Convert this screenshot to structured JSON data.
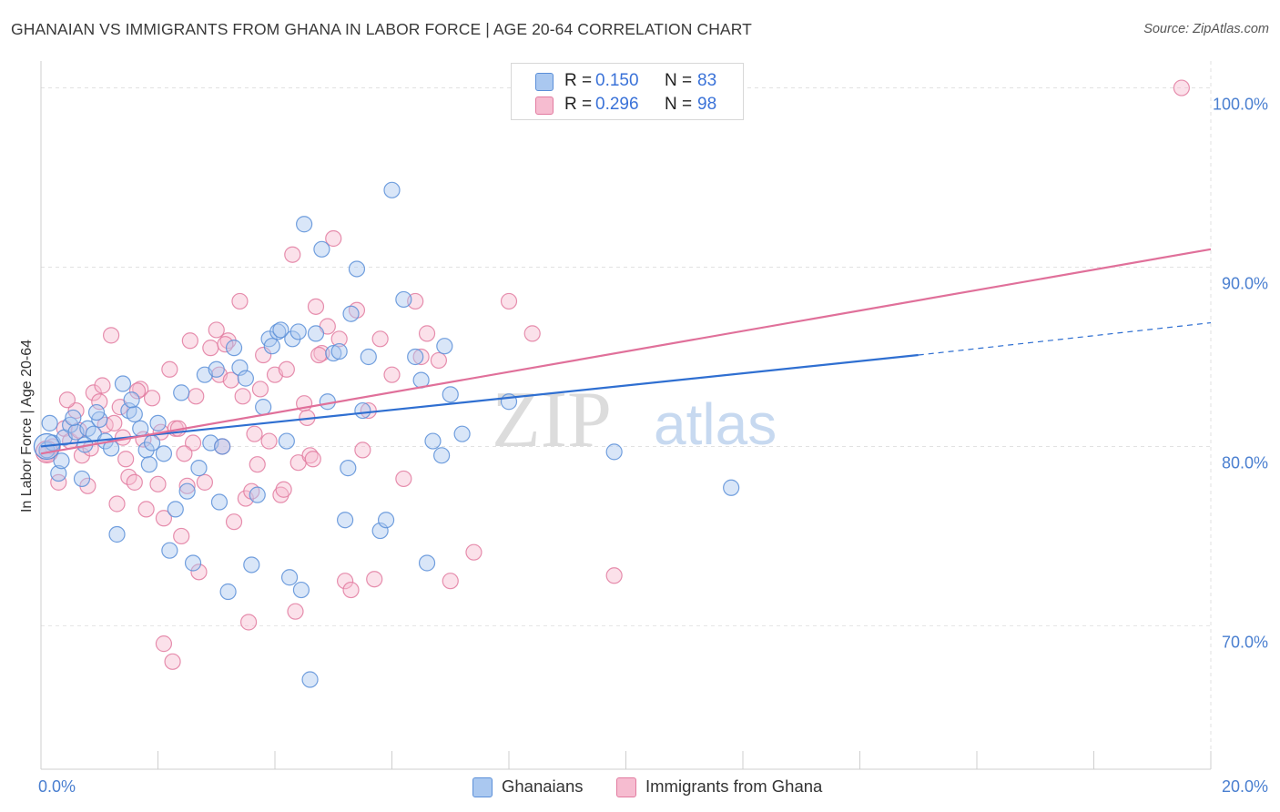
{
  "header": {
    "title": "GHANAIAN VS IMMIGRANTS FROM GHANA IN LABOR FORCE | AGE 20-64 CORRELATION CHART",
    "source": "Source: ZipAtlas.com"
  },
  "watermark": {
    "zip": "ZIP",
    "atlas": "atlas"
  },
  "legend": {
    "rows": [
      {
        "r_label": "R =",
        "r_value": "0.150",
        "n_label": "N =",
        "n_value": "83"
      },
      {
        "r_label": "R =",
        "r_value": "0.296",
        "n_label": "N =",
        "n_value": "98"
      }
    ]
  },
  "bottom_legend": {
    "items": [
      {
        "label": "Ghanaians"
      },
      {
        "label": "Immigrants from Ghana"
      }
    ]
  },
  "colors": {
    "blue_fill": "#aac8f0",
    "blue_stroke": "#5b8fd8",
    "blue_line": "#2f6fd1",
    "pink_fill": "#f6bcd0",
    "pink_stroke": "#e27ba0",
    "pink_line": "#e0709a",
    "tick_text": "#4a7fd0",
    "grid": "#e2e2e2"
  },
  "chart_data": {
    "type": "scatter",
    "title": "GHANAIAN VS IMMIGRANTS FROM GHANA IN LABOR FORCE | AGE 20-64 CORRELATION CHART",
    "xlabel": "",
    "ylabel": "In Labor Force | Age 20-64",
    "xlim": [
      0,
      20
    ],
    "ylim": [
      62,
      101.5
    ],
    "x_ticks": [
      "0.0%",
      "20.0%"
    ],
    "y_ticks": [
      {
        "value": 70,
        "label": "70.0%"
      },
      {
        "value": 80,
        "label": "80.0%"
      },
      {
        "value": 90,
        "label": "90.0%"
      },
      {
        "value": 100,
        "label": "100.0%"
      }
    ],
    "grid": "horizontal dashed",
    "legend_position": "top-center",
    "series": [
      {
        "name": "Ghanaians",
        "color": "#5b8fd8",
        "trend": {
          "x": [
            0,
            15.0
          ],
          "y": [
            80.0,
            85.1
          ],
          "dashed_to": [
            20.0,
            86.9
          ]
        },
        "points": [
          [
            0.1,
            79.8
          ],
          [
            0.2,
            80.2
          ],
          [
            0.3,
            78.5
          ],
          [
            0.4,
            80.5
          ],
          [
            0.5,
            81.2
          ],
          [
            0.6,
            80.8
          ],
          [
            0.7,
            78.2
          ],
          [
            0.8,
            81.0
          ],
          [
            0.9,
            80.7
          ],
          [
            1.0,
            81.5
          ],
          [
            1.1,
            80.3
          ],
          [
            1.2,
            79.9
          ],
          [
            1.3,
            75.1
          ],
          [
            1.4,
            83.5
          ],
          [
            1.5,
            82.0
          ],
          [
            1.6,
            81.8
          ],
          [
            1.7,
            81.0
          ],
          [
            1.8,
            79.8
          ],
          [
            1.9,
            80.2
          ],
          [
            2.0,
            81.3
          ],
          [
            2.1,
            79.6
          ],
          [
            2.2,
            74.2
          ],
          [
            2.3,
            76.5
          ],
          [
            2.4,
            83.0
          ],
          [
            2.5,
            77.5
          ],
          [
            2.6,
            73.5
          ],
          [
            2.7,
            78.8
          ],
          [
            2.8,
            84.0
          ],
          [
            2.9,
            80.2
          ],
          [
            3.0,
            84.3
          ],
          [
            3.05,
            76.9
          ],
          [
            3.1,
            80.0
          ],
          [
            3.2,
            71.9
          ],
          [
            3.3,
            85.5
          ],
          [
            3.4,
            84.4
          ],
          [
            3.5,
            83.8
          ],
          [
            3.6,
            73.4
          ],
          [
            3.7,
            77.3
          ],
          [
            3.8,
            82.2
          ],
          [
            3.9,
            86.0
          ],
          [
            3.95,
            85.6
          ],
          [
            4.05,
            86.4
          ],
          [
            4.1,
            86.5
          ],
          [
            4.2,
            80.3
          ],
          [
            4.25,
            72.7
          ],
          [
            4.3,
            86.0
          ],
          [
            4.4,
            86.4
          ],
          [
            4.45,
            72.0
          ],
          [
            4.5,
            92.4
          ],
          [
            4.6,
            67.0
          ],
          [
            4.7,
            86.3
          ],
          [
            4.8,
            91.0
          ],
          [
            4.9,
            82.5
          ],
          [
            5.0,
            85.2
          ],
          [
            5.1,
            85.3
          ],
          [
            5.2,
            75.9
          ],
          [
            5.25,
            78.8
          ],
          [
            5.3,
            87.4
          ],
          [
            5.4,
            89.9
          ],
          [
            5.5,
            82.0
          ],
          [
            5.6,
            85.0
          ],
          [
            5.8,
            75.3
          ],
          [
            5.9,
            75.9
          ],
          [
            6.0,
            94.3
          ],
          [
            6.2,
            88.2
          ],
          [
            6.4,
            85.0
          ],
          [
            6.5,
            83.7
          ],
          [
            6.6,
            73.5
          ],
          [
            6.7,
            80.3
          ],
          [
            6.85,
            79.5
          ],
          [
            6.9,
            85.6
          ],
          [
            7.0,
            82.9
          ],
          [
            7.2,
            80.7
          ],
          [
            8.0,
            82.5
          ],
          [
            9.8,
            79.7
          ],
          [
            11.8,
            77.7
          ],
          [
            0.15,
            81.3
          ],
          [
            0.35,
            79.2
          ],
          [
            0.55,
            81.6
          ],
          [
            0.75,
            80.1
          ],
          [
            0.95,
            81.9
          ],
          [
            1.55,
            82.6
          ],
          [
            1.85,
            79.0
          ]
        ]
      },
      {
        "name": "Immigrants from Ghana",
        "color": "#e27ba0",
        "trend": {
          "x": [
            0,
            20.0
          ],
          "y": [
            79.6,
            91.0
          ]
        },
        "points": [
          [
            0.1,
            79.6
          ],
          [
            0.2,
            80.0
          ],
          [
            0.3,
            78.0
          ],
          [
            0.4,
            81.0
          ],
          [
            0.5,
            80.3
          ],
          [
            0.6,
            82.0
          ],
          [
            0.7,
            79.5
          ],
          [
            0.8,
            77.8
          ],
          [
            0.9,
            83.0
          ],
          [
            1.0,
            82.5
          ],
          [
            1.1,
            81.2
          ],
          [
            1.2,
            86.2
          ],
          [
            1.3,
            76.8
          ],
          [
            1.4,
            80.5
          ],
          [
            1.5,
            78.3
          ],
          [
            1.6,
            78.0
          ],
          [
            1.7,
            83.2
          ],
          [
            1.8,
            76.5
          ],
          [
            1.9,
            82.7
          ],
          [
            2.0,
            77.9
          ],
          [
            2.05,
            80.8
          ],
          [
            2.1,
            76.0
          ],
          [
            2.2,
            84.3
          ],
          [
            2.3,
            81.0
          ],
          [
            2.4,
            75.0
          ],
          [
            2.5,
            77.8
          ],
          [
            2.6,
            80.2
          ],
          [
            2.7,
            73.0
          ],
          [
            2.8,
            78.0
          ],
          [
            2.9,
            85.5
          ],
          [
            3.0,
            86.5
          ],
          [
            3.1,
            80.0
          ],
          [
            3.2,
            85.9
          ],
          [
            3.3,
            75.8
          ],
          [
            3.4,
            88.1
          ],
          [
            3.5,
            77.1
          ],
          [
            3.6,
            77.5
          ],
          [
            3.7,
            79.0
          ],
          [
            3.8,
            85.1
          ],
          [
            3.9,
            80.3
          ],
          [
            4.0,
            84.0
          ],
          [
            4.1,
            77.3
          ],
          [
            4.2,
            84.3
          ],
          [
            4.3,
            90.7
          ],
          [
            4.4,
            79.1
          ],
          [
            4.5,
            82.4
          ],
          [
            4.6,
            79.5
          ],
          [
            4.7,
            87.8
          ],
          [
            4.8,
            85.2
          ],
          [
            4.9,
            86.7
          ],
          [
            5.0,
            91.6
          ],
          [
            5.1,
            86.0
          ],
          [
            5.2,
            72.5
          ],
          [
            5.3,
            72.0
          ],
          [
            5.4,
            87.6
          ],
          [
            5.5,
            79.8
          ],
          [
            5.6,
            82.0
          ],
          [
            5.7,
            72.6
          ],
          [
            5.8,
            86.0
          ],
          [
            6.0,
            84.0
          ],
          [
            6.2,
            78.2
          ],
          [
            6.4,
            88.1
          ],
          [
            6.5,
            85.0
          ],
          [
            6.6,
            86.3
          ],
          [
            6.8,
            84.8
          ],
          [
            7.0,
            72.5
          ],
          [
            7.4,
            74.1
          ],
          [
            8.0,
            88.1
          ],
          [
            8.4,
            86.3
          ],
          [
            9.8,
            72.8
          ],
          [
            19.5,
            100.0
          ],
          [
            2.1,
            69.0
          ],
          [
            2.25,
            68.0
          ],
          [
            3.55,
            70.2
          ],
          [
            4.35,
            70.8
          ],
          [
            1.25,
            81.3
          ],
          [
            0.45,
            82.6
          ],
          [
            0.65,
            80.9
          ],
          [
            0.85,
            79.9
          ],
          [
            1.05,
            83.4
          ],
          [
            1.35,
            82.2
          ],
          [
            1.45,
            79.3
          ],
          [
            1.65,
            83.1
          ],
          [
            1.75,
            80.4
          ],
          [
            2.35,
            81.0
          ],
          [
            2.45,
            79.6
          ],
          [
            2.55,
            85.9
          ],
          [
            2.65,
            82.8
          ],
          [
            3.05,
            84.0
          ],
          [
            3.15,
            85.7
          ],
          [
            3.25,
            83.7
          ],
          [
            3.45,
            82.8
          ],
          [
            3.65,
            80.7
          ],
          [
            3.75,
            83.2
          ],
          [
            4.15,
            77.6
          ],
          [
            4.55,
            81.6
          ],
          [
            4.65,
            79.3
          ],
          [
            4.75,
            85.1
          ]
        ]
      }
    ]
  }
}
